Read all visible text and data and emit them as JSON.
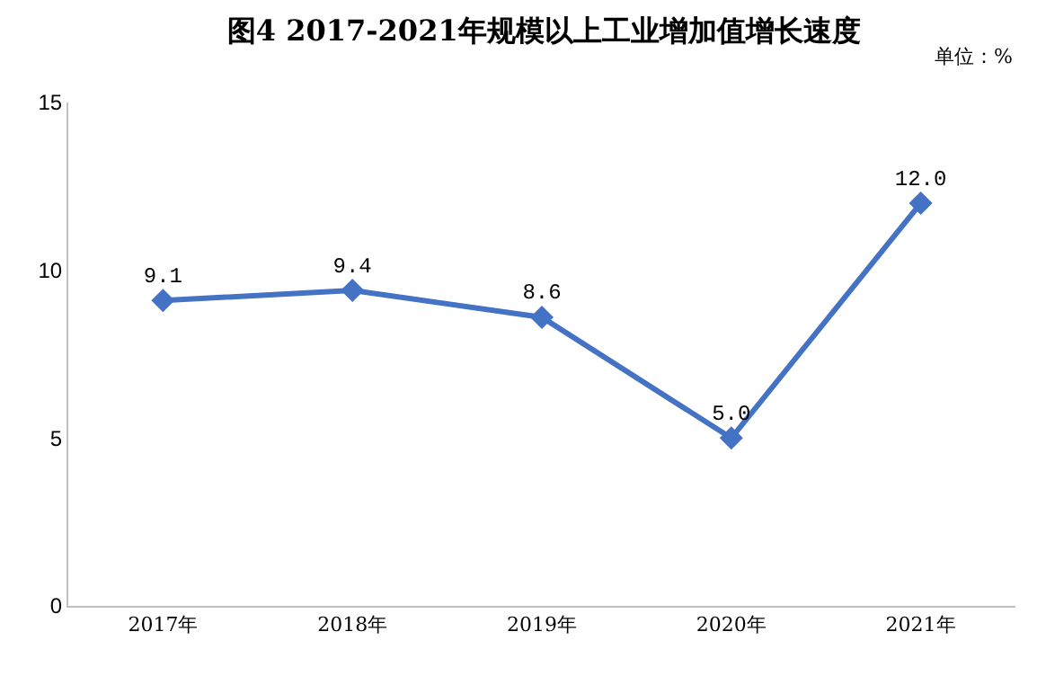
{
  "chart_data": {
    "type": "line",
    "title": "图4 2017-2021年规模以上工业增加值增长速度",
    "annotations": [
      "单位：%"
    ],
    "categories": [
      "2017年",
      "2018年",
      "2019年",
      "2020年",
      "2021年"
    ],
    "series": [
      {
        "color": "#4472c4",
        "values": [
          9.1,
          9.4,
          8.6,
          5.0,
          12.0
        ],
        "value_labels": [
          "9.1",
          "9.4",
          "8.6",
          "5.0",
          "12.0"
        ]
      }
    ],
    "ylim": [
      0,
      15
    ],
    "yticks": [
      0,
      5,
      10,
      15
    ],
    "grid": false,
    "marker": "diamond",
    "line_style": "solid"
  }
}
